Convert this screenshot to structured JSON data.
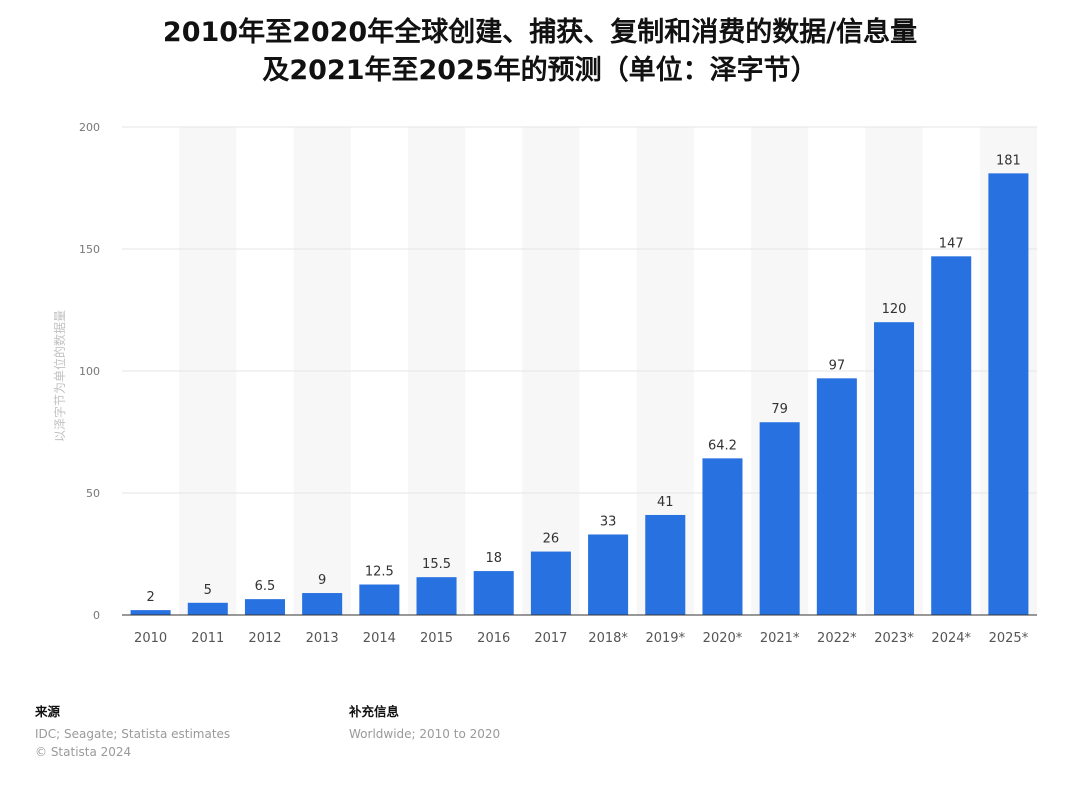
{
  "chart_data": {
    "type": "bar",
    "title": [
      "2010年至2020年全球创建、捕获、复制和消费的数据/信息量",
      "及2021年至2025年的预测（单位：泽字节）"
    ],
    "ylabel": "以泽字节为单位的数据量",
    "xlabel": "",
    "ylim": [
      0,
      200
    ],
    "yticks": [
      0,
      50,
      100,
      150,
      200
    ],
    "categories": [
      "2010",
      "2011",
      "2012",
      "2013",
      "2014",
      "2015",
      "2016",
      "2017",
      "2018*",
      "2019*",
      "2020*",
      "2021*",
      "2022*",
      "2023*",
      "2024*",
      "2025*"
    ],
    "values": [
      2,
      5,
      6.5,
      9,
      12.5,
      15.5,
      18,
      26,
      33,
      41,
      64.2,
      79,
      97,
      120,
      147,
      181
    ],
    "value_labels": [
      "2",
      "5",
      "6.5",
      "9",
      "12.5",
      "15.5",
      "18",
      "26",
      "33",
      "41",
      "64.2",
      "79",
      "97",
      "120",
      "147",
      "181"
    ],
    "bar_color": "#2871e0",
    "grid": true,
    "legend": "none"
  },
  "footer": {
    "source_heading": "来源",
    "source_lines": [
      "IDC; Seagate; Statista estimates",
      "© Statista 2024"
    ],
    "info_heading": "补充信息",
    "info_lines": [
      "Worldwide; 2010 to 2020"
    ]
  }
}
